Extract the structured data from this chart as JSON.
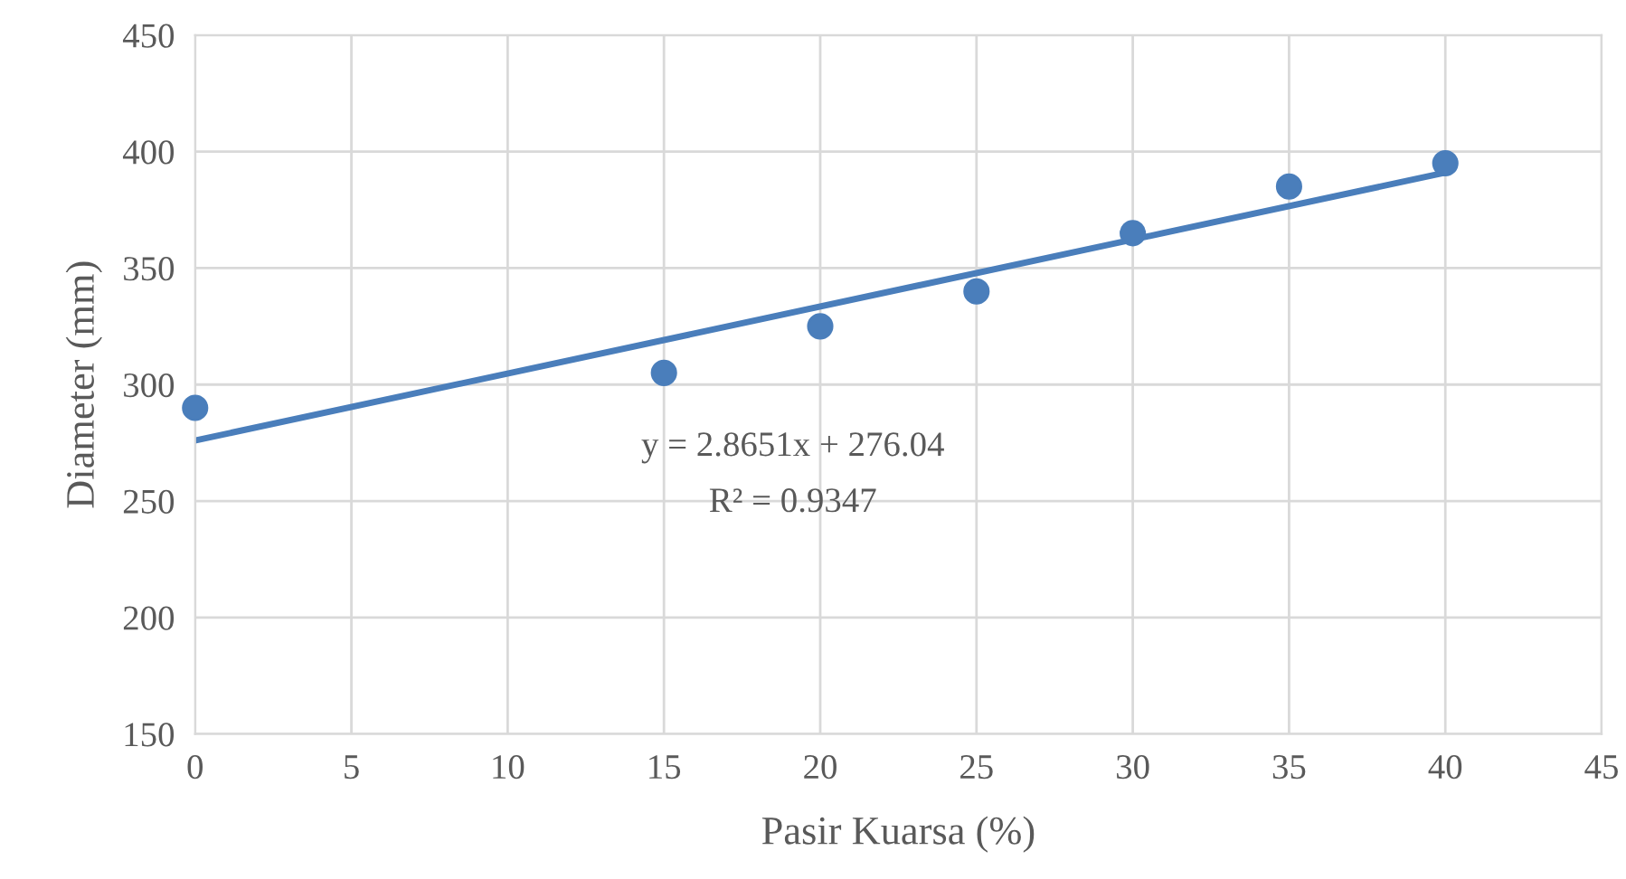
{
  "chart_data": {
    "type": "scatter",
    "xlabel": "Pasir Kuarsa (%)",
    "ylabel": "Diameter (mm)",
    "xlim": [
      0,
      45
    ],
    "xticks": [
      0,
      5,
      10,
      15,
      20,
      25,
      30,
      35,
      40,
      45
    ],
    "ylim": [
      150,
      450
    ],
    "yticks": [
      150,
      200,
      250,
      300,
      350,
      400,
      450
    ],
    "grid": true,
    "legend": false,
    "series": [
      {
        "marker": "circle",
        "color": "#4a7ebb",
        "x": [
          0,
          15,
          20,
          25,
          30,
          35,
          40
        ],
        "values": [
          290,
          305,
          325,
          340,
          365,
          385,
          395
        ]
      },
      {
        "type": "line",
        "color": "#4a7ebb",
        "x": [
          0,
          40
        ],
        "values": [
          276,
          391
        ],
        "line_style": "solid",
        "marker": "none"
      }
    ],
    "annotations": [
      "y = 2.8651x + 276.04",
      "R² = 0.9347"
    ]
  }
}
